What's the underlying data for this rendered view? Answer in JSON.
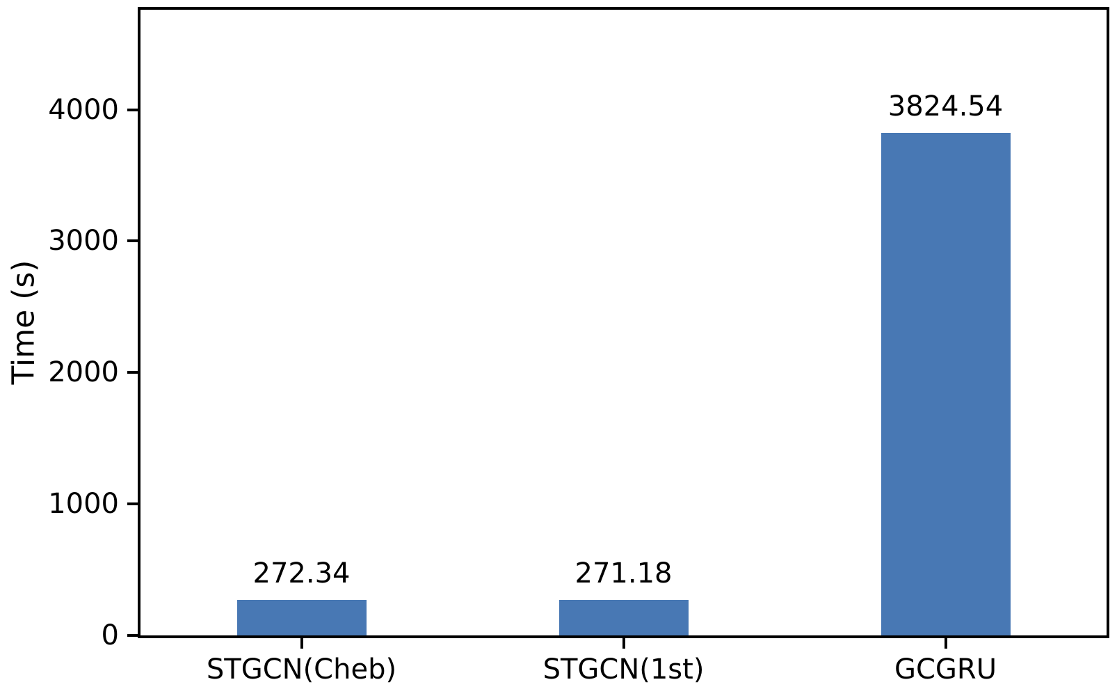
{
  "chart_data": {
    "type": "bar",
    "categories": [
      "STGCN(Cheb)",
      "STGCN(1st)",
      "GCGRU"
    ],
    "values": [
      272.34,
      271.18,
      3824.54
    ],
    "value_labels": [
      "272.34",
      "271.18",
      "3824.54"
    ],
    "title": "",
    "xlabel": "",
    "ylabel": "Time (s)",
    "yticks": [
      0,
      1000,
      2000,
      3000,
      4000
    ],
    "ytick_labels": [
      "0",
      "1000",
      "2000",
      "3000",
      "4000"
    ],
    "ylim": [
      0,
      4760
    ],
    "bar_color": "#4878B4",
    "axis_color": "#000000",
    "background_color": "#ffffff",
    "grid": false,
    "legend": null
  }
}
